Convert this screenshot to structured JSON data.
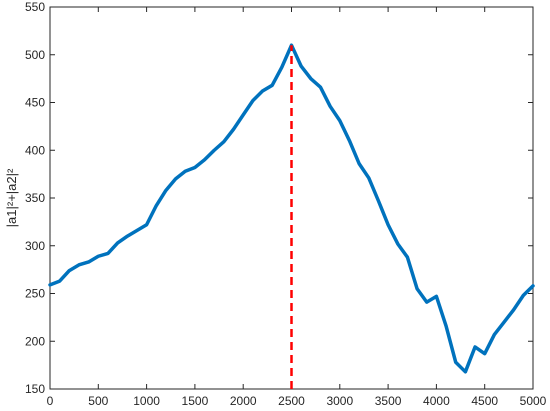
{
  "chart_data": {
    "type": "line",
    "title": "",
    "xlabel": "",
    "ylabel": "|a1|²+|a2|²",
    "xlim": [
      0,
      5000
    ],
    "ylim": [
      150,
      550
    ],
    "xticks": [
      0,
      500,
      1000,
      1500,
      2000,
      2500,
      3000,
      3500,
      4000,
      4500,
      5000
    ],
    "yticks": [
      150,
      200,
      250,
      300,
      350,
      400,
      450,
      500,
      550
    ],
    "grid": false,
    "series": [
      {
        "color": "#0072BD",
        "x": [
          0,
          100,
          200,
          300,
          400,
          500,
          600,
          700,
          800,
          900,
          1000,
          1100,
          1200,
          1300,
          1400,
          1500,
          1600,
          1700,
          1800,
          1900,
          2000,
          2100,
          2200,
          2300,
          2400,
          2500,
          2600,
          2700,
          2800,
          2900,
          3000,
          3100,
          3200,
          3300,
          3400,
          3500,
          3600,
          3700,
          3800,
          3900,
          4000,
          4100,
          4200,
          4300,
          4400,
          4500,
          4600,
          4700,
          4800,
          4900,
          5000
        ],
        "y": [
          259,
          263,
          274,
          280,
          283,
          289,
          292,
          303,
          310,
          316,
          322,
          342,
          358,
          370,
          378,
          382,
          390,
          400,
          409,
          422,
          437,
          452,
          462,
          468,
          487,
          510,
          488,
          475,
          466,
          446,
          431,
          410,
          386,
          371,
          347,
          322,
          302,
          288,
          255,
          241,
          247,
          216,
          178,
          168,
          194,
          187,
          207,
          220,
          233,
          248,
          258
        ]
      }
    ],
    "reference_line": {
      "x": 2500,
      "y_from": 150,
      "y_to": 510,
      "color": "#FF0000",
      "style": "dashed"
    }
  }
}
